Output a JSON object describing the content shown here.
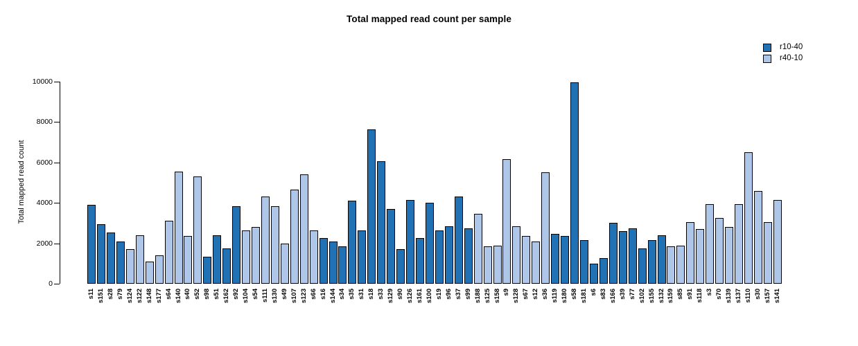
{
  "title": "Total mapped read count per sample",
  "y_axis": {
    "label": "Total mapped read count",
    "ticks": [
      0,
      2000,
      4000,
      6000,
      8000,
      10000
    ]
  },
  "legend": {
    "items": [
      {
        "label": "r10-40",
        "color": "#2171B5"
      },
      {
        "label": "r40-10",
        "color": "#AEC7E8"
      }
    ]
  },
  "chart_data": {
    "type": "bar",
    "title": "Total mapped read count per sample",
    "xlabel": "",
    "ylabel": "Total mapped read count",
    "ylim": [
      0,
      10000
    ],
    "yticks": [
      0,
      2000,
      4000,
      6000,
      8000,
      10000
    ],
    "grid": false,
    "legend_position": "top-right",
    "series_colors": {
      "r10-40": "#2171B5",
      "r40-10": "#AEC7E8"
    },
    "bars": [
      {
        "sample": "s11",
        "group": "r10-40",
        "value": 3900
      },
      {
        "sample": "s151",
        "group": "r10-40",
        "value": 2950
      },
      {
        "sample": "s28",
        "group": "r10-40",
        "value": 2550
      },
      {
        "sample": "s79",
        "group": "r10-40",
        "value": 2100
      },
      {
        "sample": "s124",
        "group": "r40-10",
        "value": 1700
      },
      {
        "sample": "s122",
        "group": "r40-10",
        "value": 2400
      },
      {
        "sample": "s148",
        "group": "r40-10",
        "value": 1100
      },
      {
        "sample": "s177",
        "group": "r40-10",
        "value": 1400
      },
      {
        "sample": "s64",
        "group": "r40-10",
        "value": 3100
      },
      {
        "sample": "s140",
        "group": "r40-10",
        "value": 5550
      },
      {
        "sample": "s40",
        "group": "r40-10",
        "value": 2350
      },
      {
        "sample": "s52",
        "group": "r40-10",
        "value": 5300
      },
      {
        "sample": "s98",
        "group": "r10-40",
        "value": 1350
      },
      {
        "sample": "s51",
        "group": "r10-40",
        "value": 2400
      },
      {
        "sample": "s162",
        "group": "r10-40",
        "value": 1750
      },
      {
        "sample": "s92",
        "group": "r10-40",
        "value": 3850
      },
      {
        "sample": "s104",
        "group": "r40-10",
        "value": 2650
      },
      {
        "sample": "s54",
        "group": "r40-10",
        "value": 2800
      },
      {
        "sample": "s111",
        "group": "r40-10",
        "value": 4300
      },
      {
        "sample": "s130",
        "group": "r40-10",
        "value": 3850
      },
      {
        "sample": "s49",
        "group": "r40-10",
        "value": 2000
      },
      {
        "sample": "s107",
        "group": "r40-10",
        "value": 4650
      },
      {
        "sample": "s123",
        "group": "r40-10",
        "value": 5400
      },
      {
        "sample": "s66",
        "group": "r40-10",
        "value": 2650
      },
      {
        "sample": "s16",
        "group": "r10-40",
        "value": 2250
      },
      {
        "sample": "s144",
        "group": "r10-40",
        "value": 2100
      },
      {
        "sample": "s34",
        "group": "r10-40",
        "value": 1850
      },
      {
        "sample": "s35",
        "group": "r10-40",
        "value": 4100
      },
      {
        "sample": "s31",
        "group": "r10-40",
        "value": 2650
      },
      {
        "sample": "s18",
        "group": "r10-40",
        "value": 7650
      },
      {
        "sample": "s33",
        "group": "r10-40",
        "value": 6050
      },
      {
        "sample": "s129",
        "group": "r10-40",
        "value": 3700
      },
      {
        "sample": "s90",
        "group": "r10-40",
        "value": 1700
      },
      {
        "sample": "s126",
        "group": "r10-40",
        "value": 4150
      },
      {
        "sample": "s161",
        "group": "r10-40",
        "value": 2250
      },
      {
        "sample": "s100",
        "group": "r10-40",
        "value": 4000
      },
      {
        "sample": "s19",
        "group": "r10-40",
        "value": 2650
      },
      {
        "sample": "s96",
        "group": "r10-40",
        "value": 2850
      },
      {
        "sample": "s37",
        "group": "r10-40",
        "value": 4300
      },
      {
        "sample": "s99",
        "group": "r10-40",
        "value": 2750
      },
      {
        "sample": "s188",
        "group": "r40-10",
        "value": 3450
      },
      {
        "sample": "s125",
        "group": "r40-10",
        "value": 1850
      },
      {
        "sample": "s158",
        "group": "r40-10",
        "value": 1900
      },
      {
        "sample": "s9",
        "group": "r40-10",
        "value": 6150
      },
      {
        "sample": "s128",
        "group": "r40-10",
        "value": 2850
      },
      {
        "sample": "s67",
        "group": "r40-10",
        "value": 2350
      },
      {
        "sample": "s12",
        "group": "r40-10",
        "value": 2100
      },
      {
        "sample": "s36",
        "group": "r40-10",
        "value": 5500
      },
      {
        "sample": "s119",
        "group": "r10-40",
        "value": 2450
      },
      {
        "sample": "s180",
        "group": "r10-40",
        "value": 2350
      },
      {
        "sample": "s58",
        "group": "r10-40",
        "value": 9950
      },
      {
        "sample": "s181",
        "group": "r10-40",
        "value": 2150
      },
      {
        "sample": "s6",
        "group": "r10-40",
        "value": 1000
      },
      {
        "sample": "s83",
        "group": "r10-40",
        "value": 1250
      },
      {
        "sample": "s166",
        "group": "r10-40",
        "value": 3000
      },
      {
        "sample": "s39",
        "group": "r10-40",
        "value": 2600
      },
      {
        "sample": "s77",
        "group": "r10-40",
        "value": 2750
      },
      {
        "sample": "s102",
        "group": "r10-40",
        "value": 1750
      },
      {
        "sample": "s155",
        "group": "r10-40",
        "value": 2150
      },
      {
        "sample": "s132",
        "group": "r10-40",
        "value": 2400
      },
      {
        "sample": "s159",
        "group": "r40-10",
        "value": 1850
      },
      {
        "sample": "s85",
        "group": "r40-10",
        "value": 1900
      },
      {
        "sample": "s91",
        "group": "r40-10",
        "value": 3050
      },
      {
        "sample": "s118",
        "group": "r40-10",
        "value": 2700
      },
      {
        "sample": "s3",
        "group": "r40-10",
        "value": 3950
      },
      {
        "sample": "s70",
        "group": "r40-10",
        "value": 3250
      },
      {
        "sample": "s139",
        "group": "r40-10",
        "value": 2800
      },
      {
        "sample": "s137",
        "group": "r40-10",
        "value": 3950
      },
      {
        "sample": "s110",
        "group": "r40-10",
        "value": 6500
      },
      {
        "sample": "s30",
        "group": "r40-10",
        "value": 4600
      },
      {
        "sample": "s157",
        "group": "r40-10",
        "value": 3050
      },
      {
        "sample": "s141",
        "group": "r40-10",
        "value": 4150
      }
    ]
  }
}
